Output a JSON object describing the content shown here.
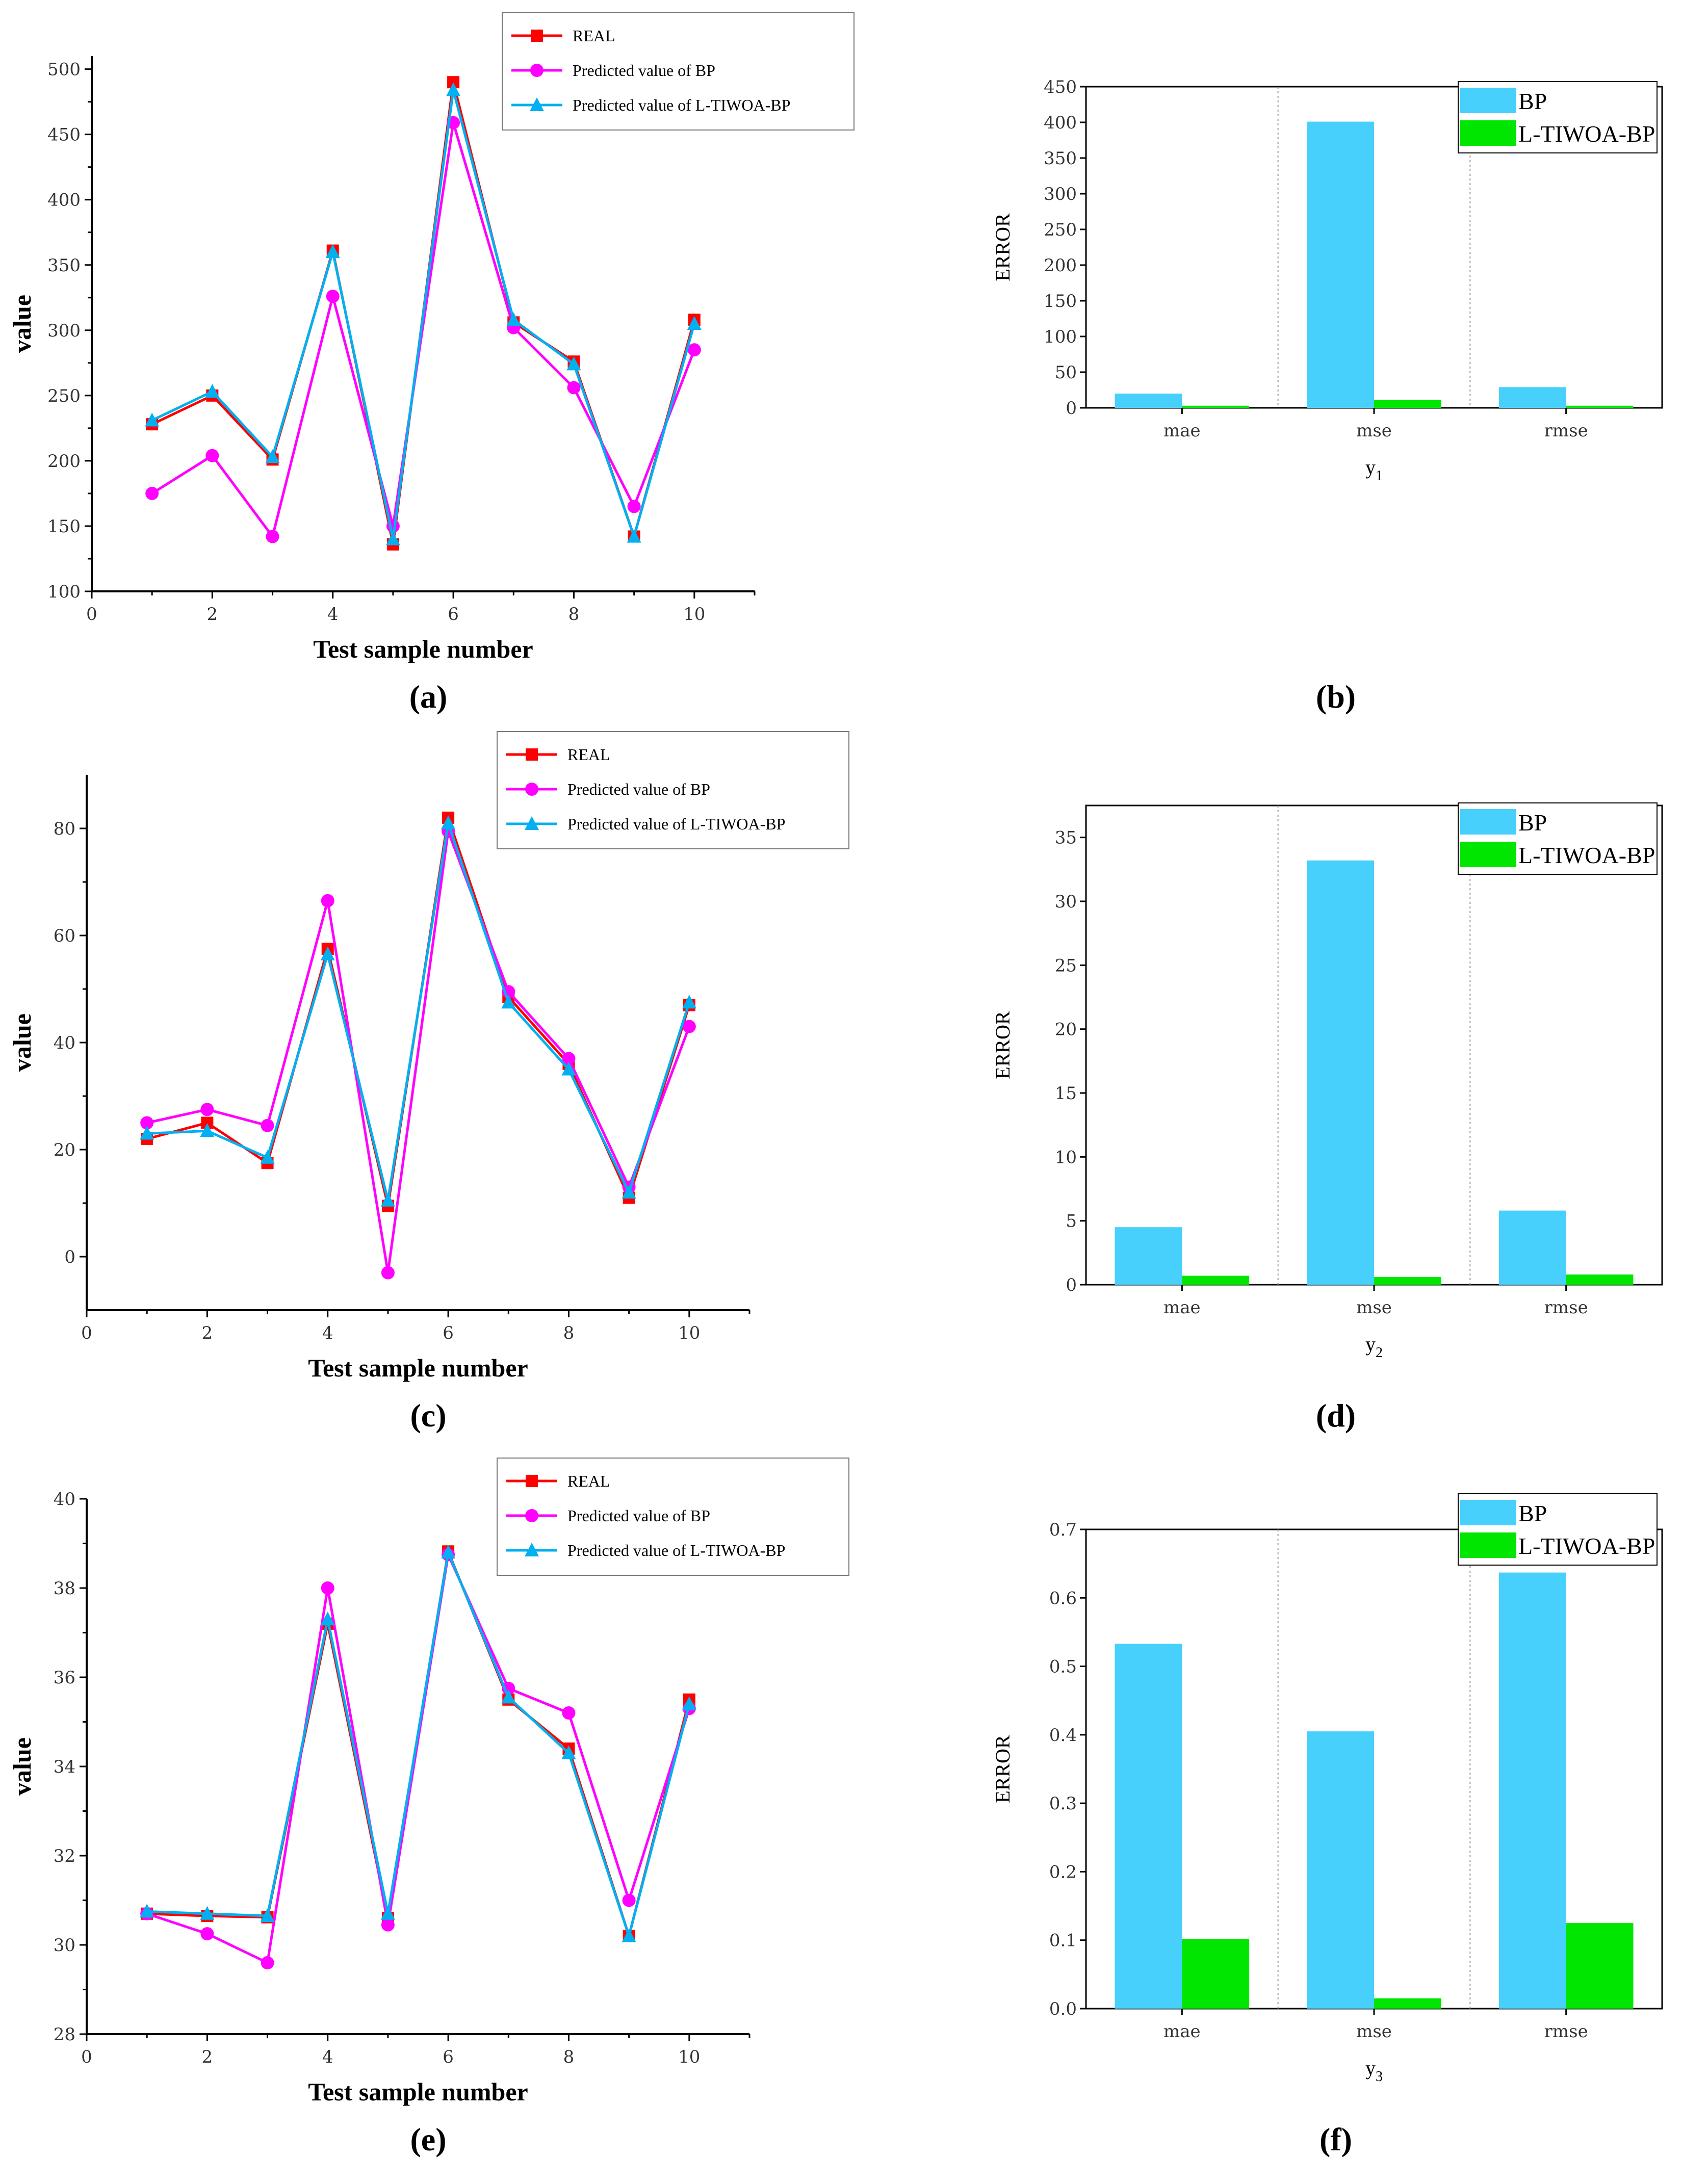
{
  "captions": [
    "(a)",
    "(b)",
    "(c)",
    "(d)",
    "(e)",
    "(f)"
  ],
  "colors": {
    "real": "#ff0000",
    "bp": "#ff00ff",
    "ltiwoa": "#00b0f0",
    "bar_bp": "#47d0fb",
    "bar_ltiwoa": "#00e600"
  },
  "chart_data": [
    {
      "id": "a",
      "type": "line",
      "xlabel": "Test sample number",
      "ylabel": "value",
      "xlim": [
        0,
        11
      ],
      "ylim": [
        100,
        510
      ],
      "xticks": [
        0,
        2,
        4,
        6,
        8,
        10
      ],
      "yticks": [
        100,
        150,
        200,
        250,
        300,
        350,
        400,
        450,
        500
      ],
      "x": [
        1,
        2,
        3,
        4,
        5,
        6,
        7,
        8,
        9,
        10
      ],
      "series": [
        {
          "name": "REAL",
          "marker": "square",
          "color": "#ff0000",
          "values": [
            228,
            250,
            201,
            361,
            136,
            490,
            306,
            276,
            142,
            308
          ]
        },
        {
          "name": "Predicted value of BP",
          "marker": "circle",
          "color": "#ff00ff",
          "values": [
            175,
            204,
            142,
            326,
            150,
            459,
            302,
            256,
            165,
            285
          ]
        },
        {
          "name": "Predicted value of L-TIWOA-BP",
          "marker": "triangle",
          "color": "#00b0f0",
          "values": [
            231,
            253,
            203,
            360,
            140,
            484,
            308,
            274,
            142,
            305
          ]
        }
      ]
    },
    {
      "id": "b",
      "type": "bar",
      "xlabel": "y1",
      "ylabel": "ERROR",
      "ylim": [
        0,
        450
      ],
      "yticks": [
        0,
        50,
        100,
        150,
        200,
        250,
        300,
        350,
        400,
        450
      ],
      "categories": [
        "mae",
        "mse",
        "rmse"
      ],
      "series": [
        {
          "name": "BP",
          "values": [
            20,
            401,
            29
          ]
        },
        {
          "name": "L-TIWOA-BP",
          "values": [
            3,
            11,
            3
          ]
        }
      ]
    },
    {
      "id": "c",
      "type": "line",
      "xlabel": "Test sample number",
      "ylabel": "value",
      "xlim": [
        0,
        11
      ],
      "ylim": [
        -10,
        90
      ],
      "xticks": [
        0,
        2,
        4,
        6,
        8,
        10
      ],
      "yticks": [
        0,
        20,
        40,
        60,
        80
      ],
      "x": [
        1,
        2,
        3,
        4,
        5,
        6,
        7,
        8,
        9,
        10
      ],
      "series": [
        {
          "name": "REAL",
          "marker": "square",
          "color": "#ff0000",
          "values": [
            22,
            25,
            17.5,
            57.5,
            9.5,
            82,
            48.5,
            36,
            11,
            47
          ]
        },
        {
          "name": "Predicted value of BP",
          "marker": "circle",
          "color": "#ff00ff",
          "values": [
            25,
            27.5,
            24.5,
            66.5,
            -3,
            79.5,
            49.5,
            37,
            13,
            43
          ]
        },
        {
          "name": "Predicted value of L-TIWOA-BP",
          "marker": "triangle",
          "color": "#00b0f0",
          "values": [
            23,
            23.5,
            18.5,
            56.5,
            10.5,
            81,
            47.5,
            35,
            12,
            47.5
          ]
        }
      ]
    },
    {
      "id": "d",
      "type": "bar",
      "xlabel": "y2",
      "ylabel": "ERROR",
      "ylim": [
        0,
        37.5
      ],
      "yticks": [
        0,
        5,
        10,
        15,
        20,
        25,
        30,
        35
      ],
      "categories": [
        "mae",
        "mse",
        "rmse"
      ],
      "series": [
        {
          "name": "BP",
          "values": [
            4.5,
            33.2,
            5.8
          ]
        },
        {
          "name": "L-TIWOA-BP",
          "values": [
            0.7,
            0.6,
            0.8
          ]
        }
      ]
    },
    {
      "id": "e",
      "type": "line",
      "xlabel": "Test sample number",
      "ylabel": "value",
      "xlim": [
        0,
        11
      ],
      "ylim": [
        28,
        40
      ],
      "xticks": [
        0,
        2,
        4,
        6,
        8,
        10
      ],
      "yticks": [
        28,
        30,
        32,
        34,
        36,
        38,
        40
      ],
      "x": [
        1,
        2,
        3,
        4,
        5,
        6,
        7,
        8,
        9,
        10
      ],
      "series": [
        {
          "name": "REAL",
          "marker": "square",
          "color": "#ff0000",
          "values": [
            30.7,
            30.65,
            30.62,
            37.2,
            30.6,
            38.82,
            35.5,
            34.4,
            30.2,
            35.5
          ]
        },
        {
          "name": "Predicted value of BP",
          "marker": "circle",
          "color": "#ff00ff",
          "values": [
            30.7,
            30.25,
            29.6,
            38.0,
            30.45,
            38.75,
            35.75,
            35.2,
            31.0,
            35.3
          ]
        },
        {
          "name": "Predicted value of L-TIWOA-BP",
          "marker": "triangle",
          "color": "#00b0f0",
          "values": [
            30.75,
            30.7,
            30.65,
            37.3,
            30.7,
            38.8,
            35.55,
            34.3,
            30.2,
            35.4
          ]
        }
      ]
    },
    {
      "id": "f",
      "type": "bar",
      "xlabel": "y3",
      "ylabel": "ERROR",
      "ylim": [
        0,
        0.7
      ],
      "yticks": [
        0,
        0.1,
        0.2,
        0.3,
        0.4,
        0.5,
        0.6,
        0.7
      ],
      "ytick_labels": [
        "0.0",
        "0.1",
        "0.2",
        "0.3",
        "0.4",
        "0.5",
        "0.6",
        "0.7"
      ],
      "categories": [
        "mae",
        "mse",
        "rmse"
      ],
      "series": [
        {
          "name": "BP",
          "values": [
            0.533,
            0.405,
            0.637
          ]
        },
        {
          "name": "L-TIWOA-BP",
          "values": [
            0.102,
            0.015,
            0.125
          ]
        }
      ]
    }
  ]
}
